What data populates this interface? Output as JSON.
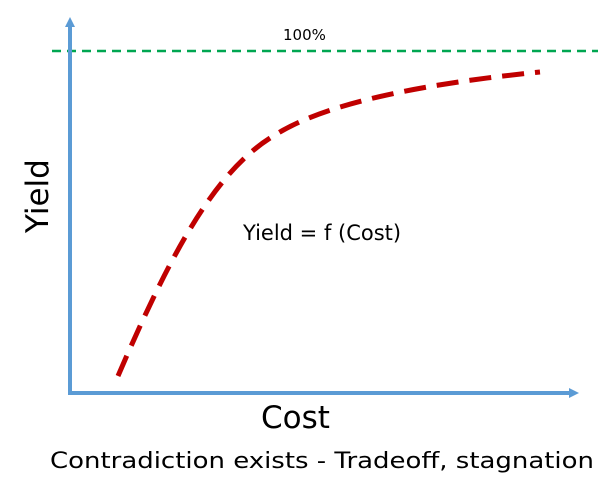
{
  "labels": {
    "hundred_percent": "100%",
    "y_axis": "Yield",
    "x_axis": "Cost",
    "equation": "Yield = f (Cost)",
    "caption": "Contradiction exists - Tradeoff, stagnation"
  },
  "colors": {
    "axis": "#5b9bd5",
    "curve": "#c00000",
    "ceiling": "#00a651",
    "text": "#000000"
  },
  "curve": {
    "style": "dashed",
    "shape": "concave increasing, saturating toward the 100% line"
  },
  "ceiling_line": {
    "style": "dashed"
  }
}
